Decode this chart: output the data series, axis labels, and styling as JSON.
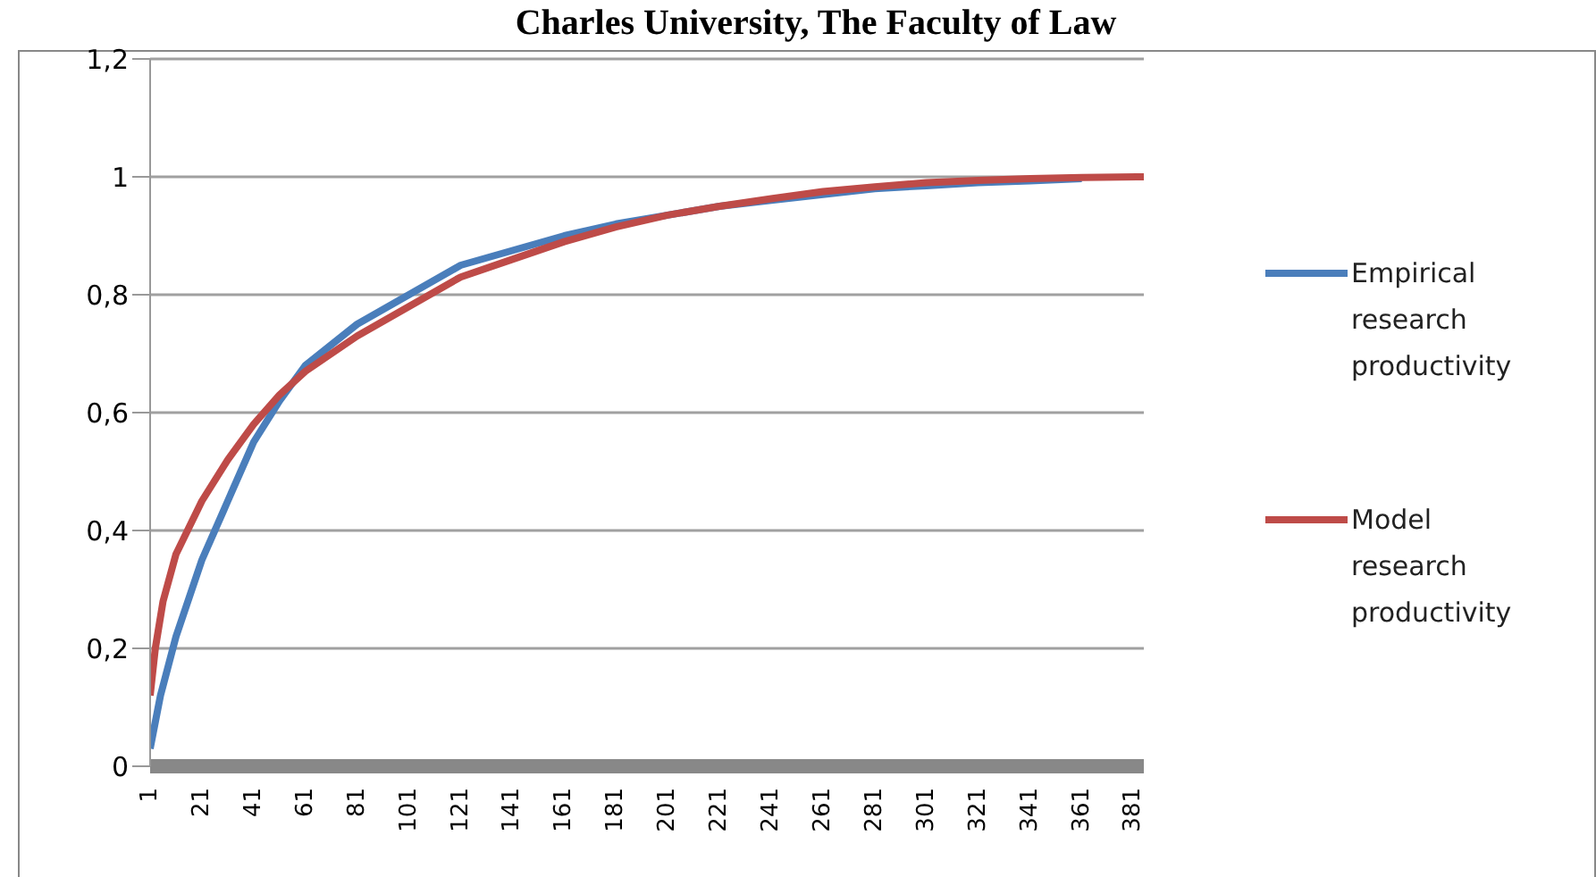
{
  "chart_data": {
    "type": "line",
    "title": "Charles University, The Faculty of Law",
    "xlim": [
      1,
      385
    ],
    "xticks": [
      1,
      21,
      41,
      61,
      81,
      101,
      121,
      141,
      161,
      181,
      201,
      221,
      241,
      261,
      281,
      301,
      321,
      341,
      361,
      381
    ],
    "ylim": [
      0,
      1.2
    ],
    "yticks": [
      0,
      {
        "value": 0.2,
        "label": "0,2"
      },
      {
        "value": 0.4,
        "label": "0,4"
      },
      {
        "value": 0.6,
        "label": "0,6"
      },
      {
        "value": 0.8,
        "label": "0,8"
      },
      1,
      {
        "value": 1.2,
        "label": "1,2"
      }
    ],
    "grid": "y",
    "legend": "right",
    "marker": "none",
    "line_style": "solid",
    "series": [
      {
        "name": "Empirical research productivity",
        "color": "#4a7ebb",
        "x": [
          1,
          5,
          11,
          21,
          31,
          41,
          51,
          61,
          81,
          101,
          121,
          141,
          161,
          181,
          201,
          221,
          241,
          261,
          281,
          301,
          321,
          341,
          361
        ],
        "values": [
          0.03,
          0.12,
          0.22,
          0.35,
          0.45,
          0.55,
          0.62,
          0.68,
          0.75,
          0.8,
          0.85,
          0.875,
          0.9,
          0.92,
          0.935,
          0.95,
          0.96,
          0.97,
          0.98,
          0.985,
          0.99,
          0.993,
          0.997
        ]
      },
      {
        "name": "Model research productivity",
        "color": "#be4b48",
        "x": [
          1,
          3,
          6,
          11,
          21,
          31,
          41,
          51,
          61,
          81,
          101,
          121,
          141,
          161,
          181,
          201,
          221,
          241,
          261,
          281,
          301,
          321,
          341,
          361,
          385
        ],
        "values": [
          0.12,
          0.2,
          0.28,
          0.36,
          0.45,
          0.52,
          0.58,
          0.63,
          0.67,
          0.73,
          0.78,
          0.83,
          0.86,
          0.89,
          0.915,
          0.935,
          0.95,
          0.963,
          0.975,
          0.983,
          0.99,
          0.994,
          0.997,
          0.999,
          1.0
        ]
      }
    ]
  }
}
